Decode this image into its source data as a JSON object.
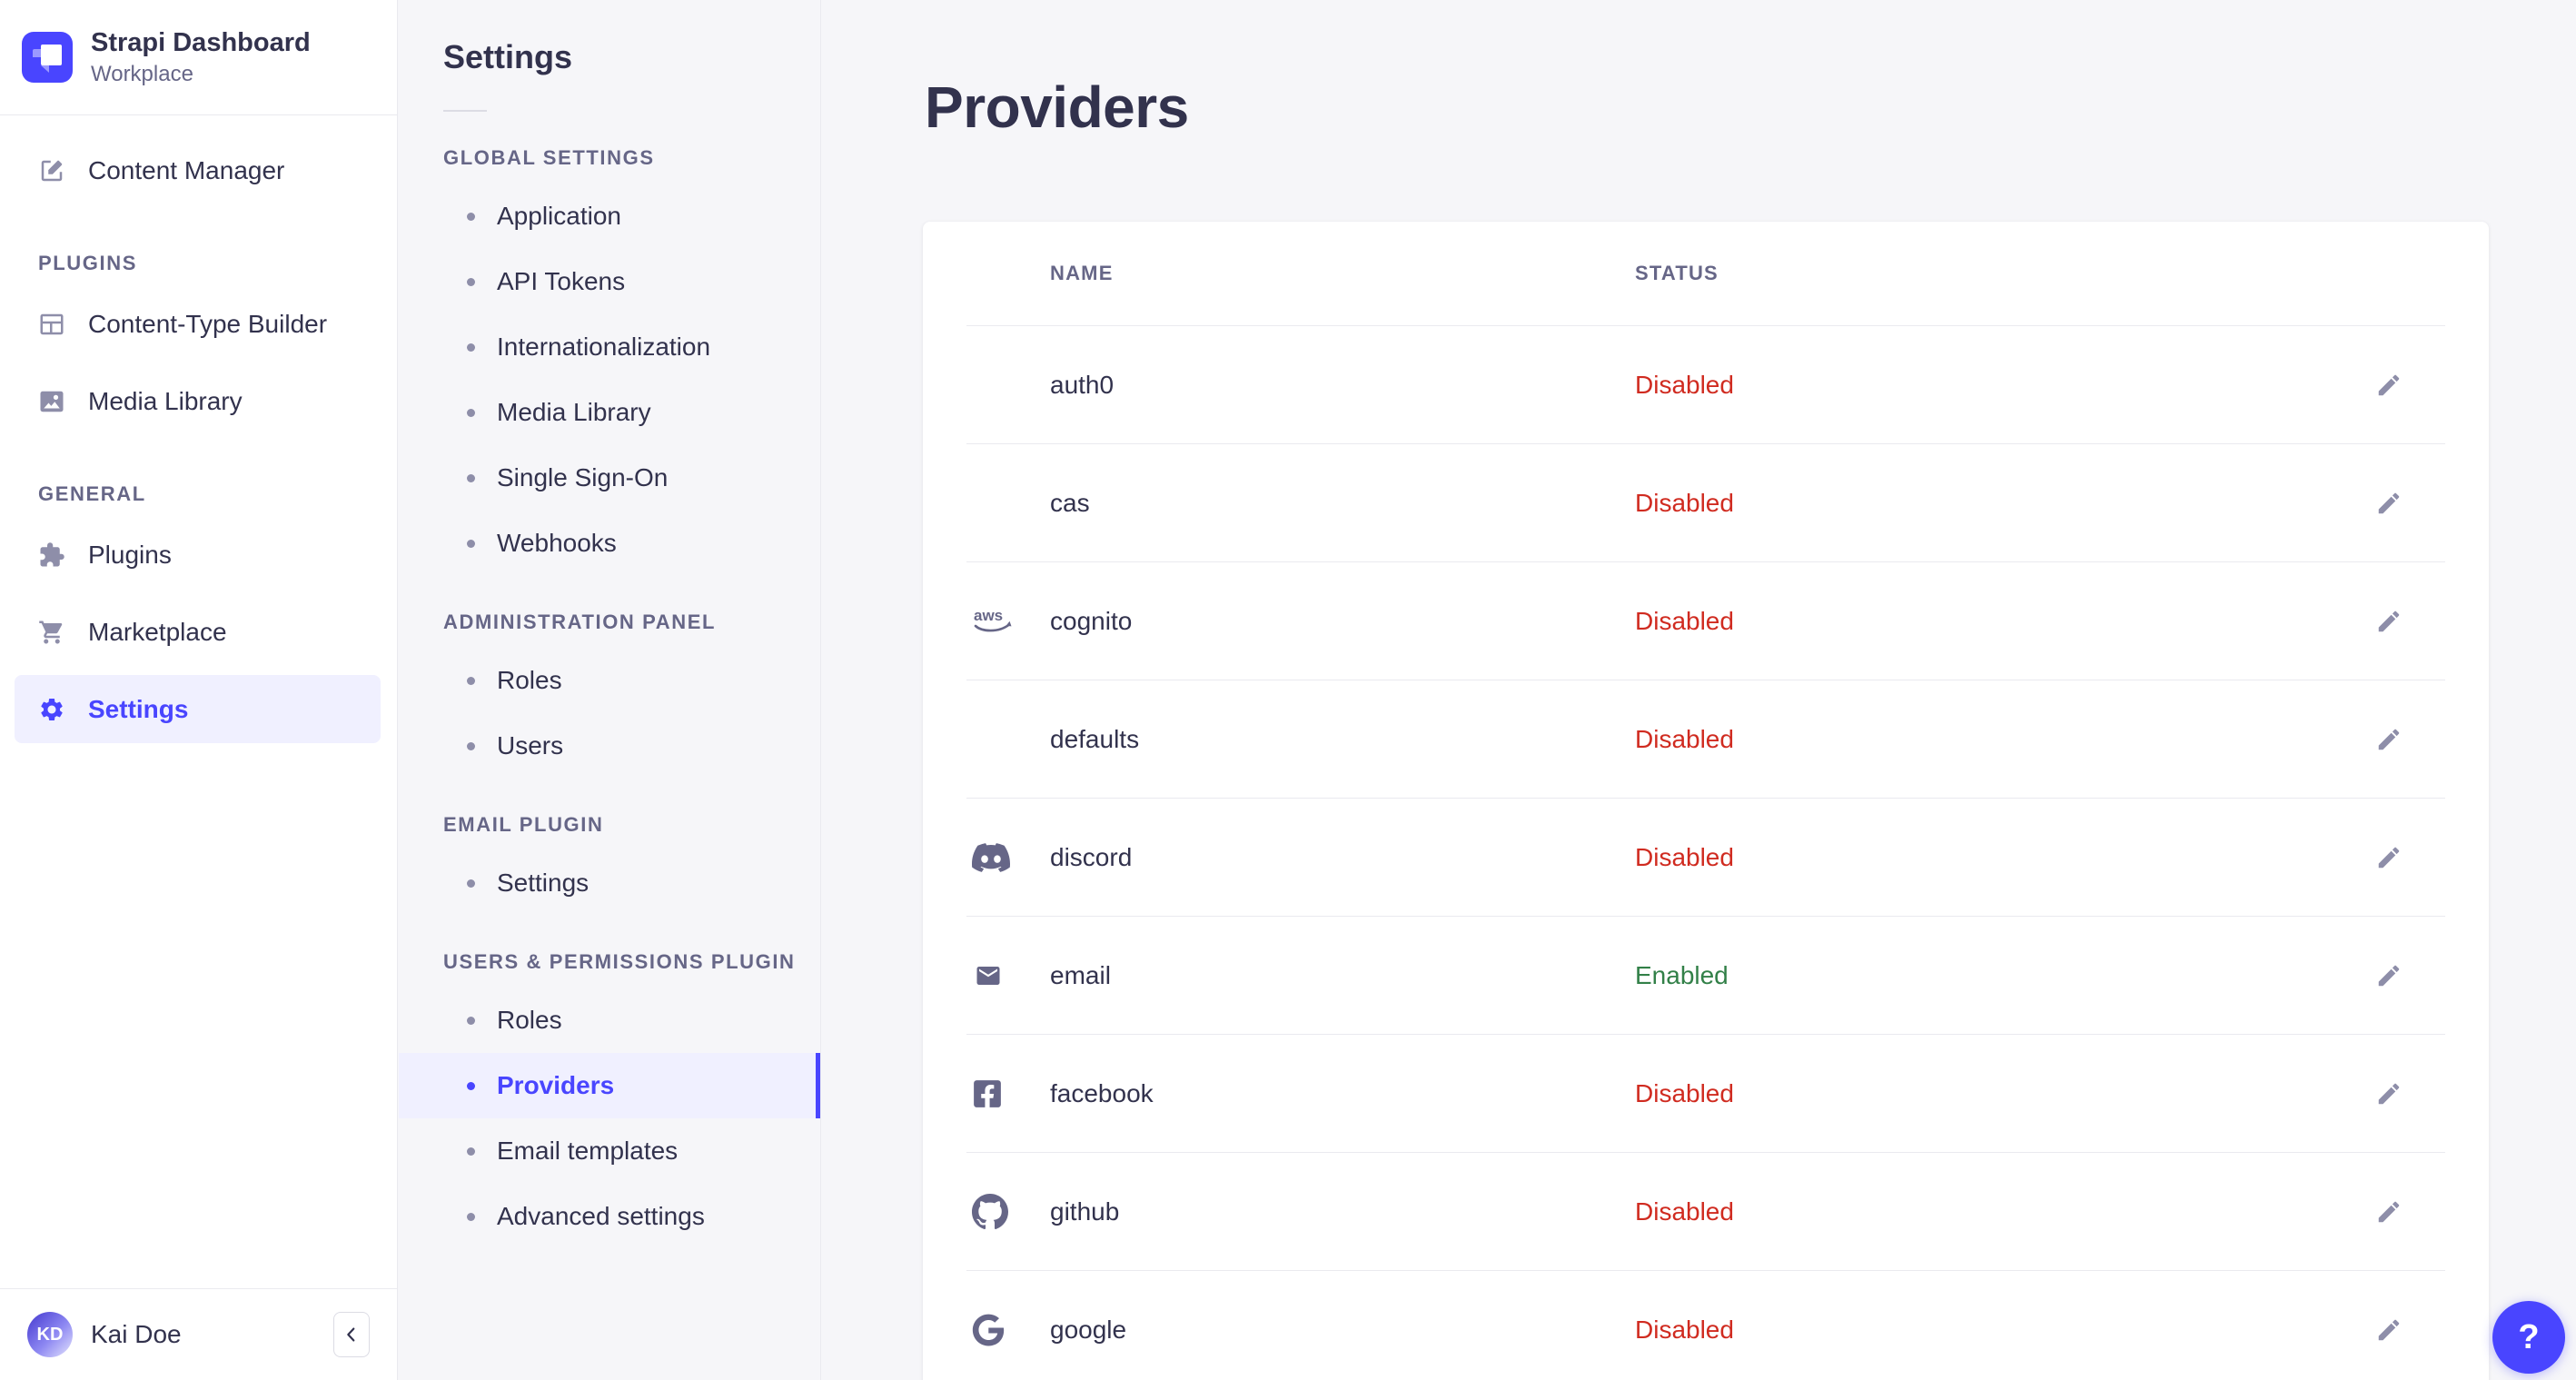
{
  "app": {
    "name": "Strapi Dashboard",
    "workspace": "Workplace",
    "user": {
      "name": "Kai Doe",
      "initials": "KD"
    },
    "help_label": "?"
  },
  "colors": {
    "primary": "#4945ff",
    "primary_light_bg": "#f0f0ff",
    "status_disabled": "#d02b20",
    "status_enabled": "#328048",
    "text_dark": "#32324d",
    "text_muted": "#666687",
    "border": "#eaeaef",
    "page_bg": "#f6f6f9"
  },
  "sidebar": {
    "top_item": {
      "label": "Content Manager",
      "icon": "compose-icon"
    },
    "sections": [
      {
        "label": "PLUGINS",
        "items": [
          {
            "label": "Content-Type Builder",
            "icon": "layout-grid-icon"
          },
          {
            "label": "Media Library",
            "icon": "picture-icon"
          }
        ]
      },
      {
        "label": "GENERAL",
        "items": [
          {
            "label": "Plugins",
            "icon": "puzzle-icon"
          },
          {
            "label": "Marketplace",
            "icon": "cart-icon"
          },
          {
            "label": "Settings",
            "icon": "gear-icon",
            "active": true
          }
        ]
      }
    ]
  },
  "subnav": {
    "title": "Settings",
    "groups": [
      {
        "label": "GLOBAL SETTINGS",
        "items": [
          {
            "label": "Application"
          },
          {
            "label": "API Tokens"
          },
          {
            "label": "Internationalization"
          },
          {
            "label": "Media Library"
          },
          {
            "label": "Single Sign-On"
          },
          {
            "label": "Webhooks"
          }
        ]
      },
      {
        "label": "ADMINISTRATION PANEL",
        "items": [
          {
            "label": "Roles"
          },
          {
            "label": "Users"
          }
        ]
      },
      {
        "label": "EMAIL PLUGIN",
        "items": [
          {
            "label": "Settings"
          }
        ]
      },
      {
        "label": "USERS & PERMISSIONS PLUGIN",
        "items": [
          {
            "label": "Roles"
          },
          {
            "label": "Providers",
            "active": true
          },
          {
            "label": "Email templates"
          },
          {
            "label": "Advanced settings"
          }
        ]
      }
    ]
  },
  "main": {
    "title": "Providers",
    "table": {
      "columns": [
        "NAME",
        "STATUS"
      ],
      "rows": [
        {
          "name": "auth0",
          "icon": null,
          "status": "Disabled"
        },
        {
          "name": "cas",
          "icon": null,
          "status": "Disabled"
        },
        {
          "name": "cognito",
          "icon": "aws-icon",
          "status": "Disabled"
        },
        {
          "name": "defaults",
          "icon": null,
          "status": "Disabled"
        },
        {
          "name": "discord",
          "icon": "discord-icon",
          "status": "Disabled"
        },
        {
          "name": "email",
          "icon": "envelope-icon",
          "status": "Enabled"
        },
        {
          "name": "facebook",
          "icon": "facebook-icon",
          "status": "Disabled"
        },
        {
          "name": "github",
          "icon": "github-icon",
          "status": "Disabled"
        },
        {
          "name": "google",
          "icon": "google-icon",
          "status": "Disabled"
        }
      ]
    }
  }
}
